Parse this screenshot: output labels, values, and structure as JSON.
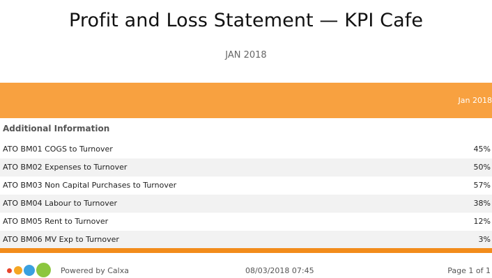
{
  "report": {
    "title": "Profit and Loss Statement — KPI Cafe",
    "subtitle": "JAN 2018"
  },
  "table": {
    "column_header": "Jan 2018",
    "section_title": "Additional Information",
    "rows": [
      {
        "label": "ATO BM01 COGS to Turnover",
        "value": "45%"
      },
      {
        "label": "ATO BM02 Expenses to Turnover",
        "value": "50%"
      },
      {
        "label": "ATO BM03 Non Capital Purchases to Turnover",
        "value": "57%"
      },
      {
        "label": "ATO BM04 Labour to Turnover",
        "value": "38%"
      },
      {
        "label": "ATO BM05 Rent to Turnover",
        "value": "12%"
      },
      {
        "label": "ATO BM06 MV Exp to Turnover",
        "value": "3%"
      }
    ]
  },
  "footer": {
    "powered_by": "Powered by Calxa",
    "timestamp": "08/03/2018 07:45",
    "page_info": "Page 1 of 1",
    "logo_icon": "calxa-dots-logo-icon",
    "logo_colors": [
      "#e8452c",
      "#f5a623",
      "#3aa0e0",
      "#8cc63f"
    ]
  },
  "colors": {
    "header_band": "#f8a140",
    "bottom_band": "#f28c1c",
    "row_alt": "#f2f2f2"
  }
}
